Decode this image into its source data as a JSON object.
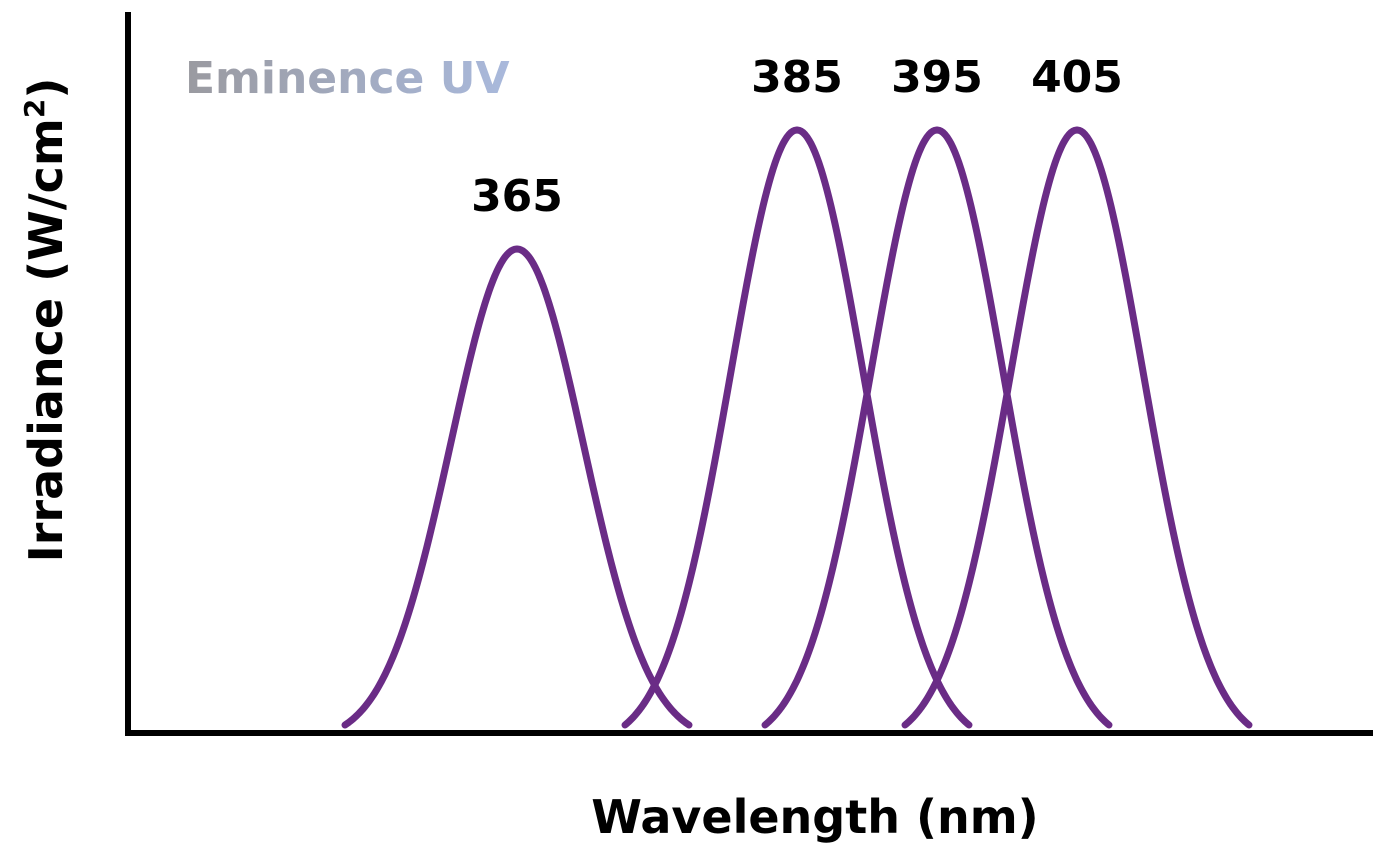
{
  "chart_data": {
    "type": "line",
    "brand": "Eminence UV",
    "xlabel": "Wavelength (nm)",
    "ylabel_main": "Irradiance (W/cm",
    "ylabel_sup": "2",
    "ylabel_close": ")",
    "grid": false,
    "ticks_shown": false,
    "series": [
      {
        "label": "365",
        "peak_wavelength": 365,
        "relative_peak": 0.8,
        "relative_half_width": 0.5
      },
      {
        "label": "385",
        "peak_wavelength": 385,
        "relative_peak": 1.0,
        "relative_half_width": 0.5
      },
      {
        "label": "395",
        "peak_wavelength": 395,
        "relative_peak": 1.0,
        "relative_half_width": 0.5
      },
      {
        "label": "405",
        "peak_wavelength": 405,
        "relative_peak": 1.0,
        "relative_half_width": 0.5
      }
    ]
  },
  "colors": {
    "curve": "#6a2c86",
    "axis": "#000000",
    "brand_gradient_start": "#9a9aa0",
    "brand_gradient_end": "#a9b9dc"
  }
}
